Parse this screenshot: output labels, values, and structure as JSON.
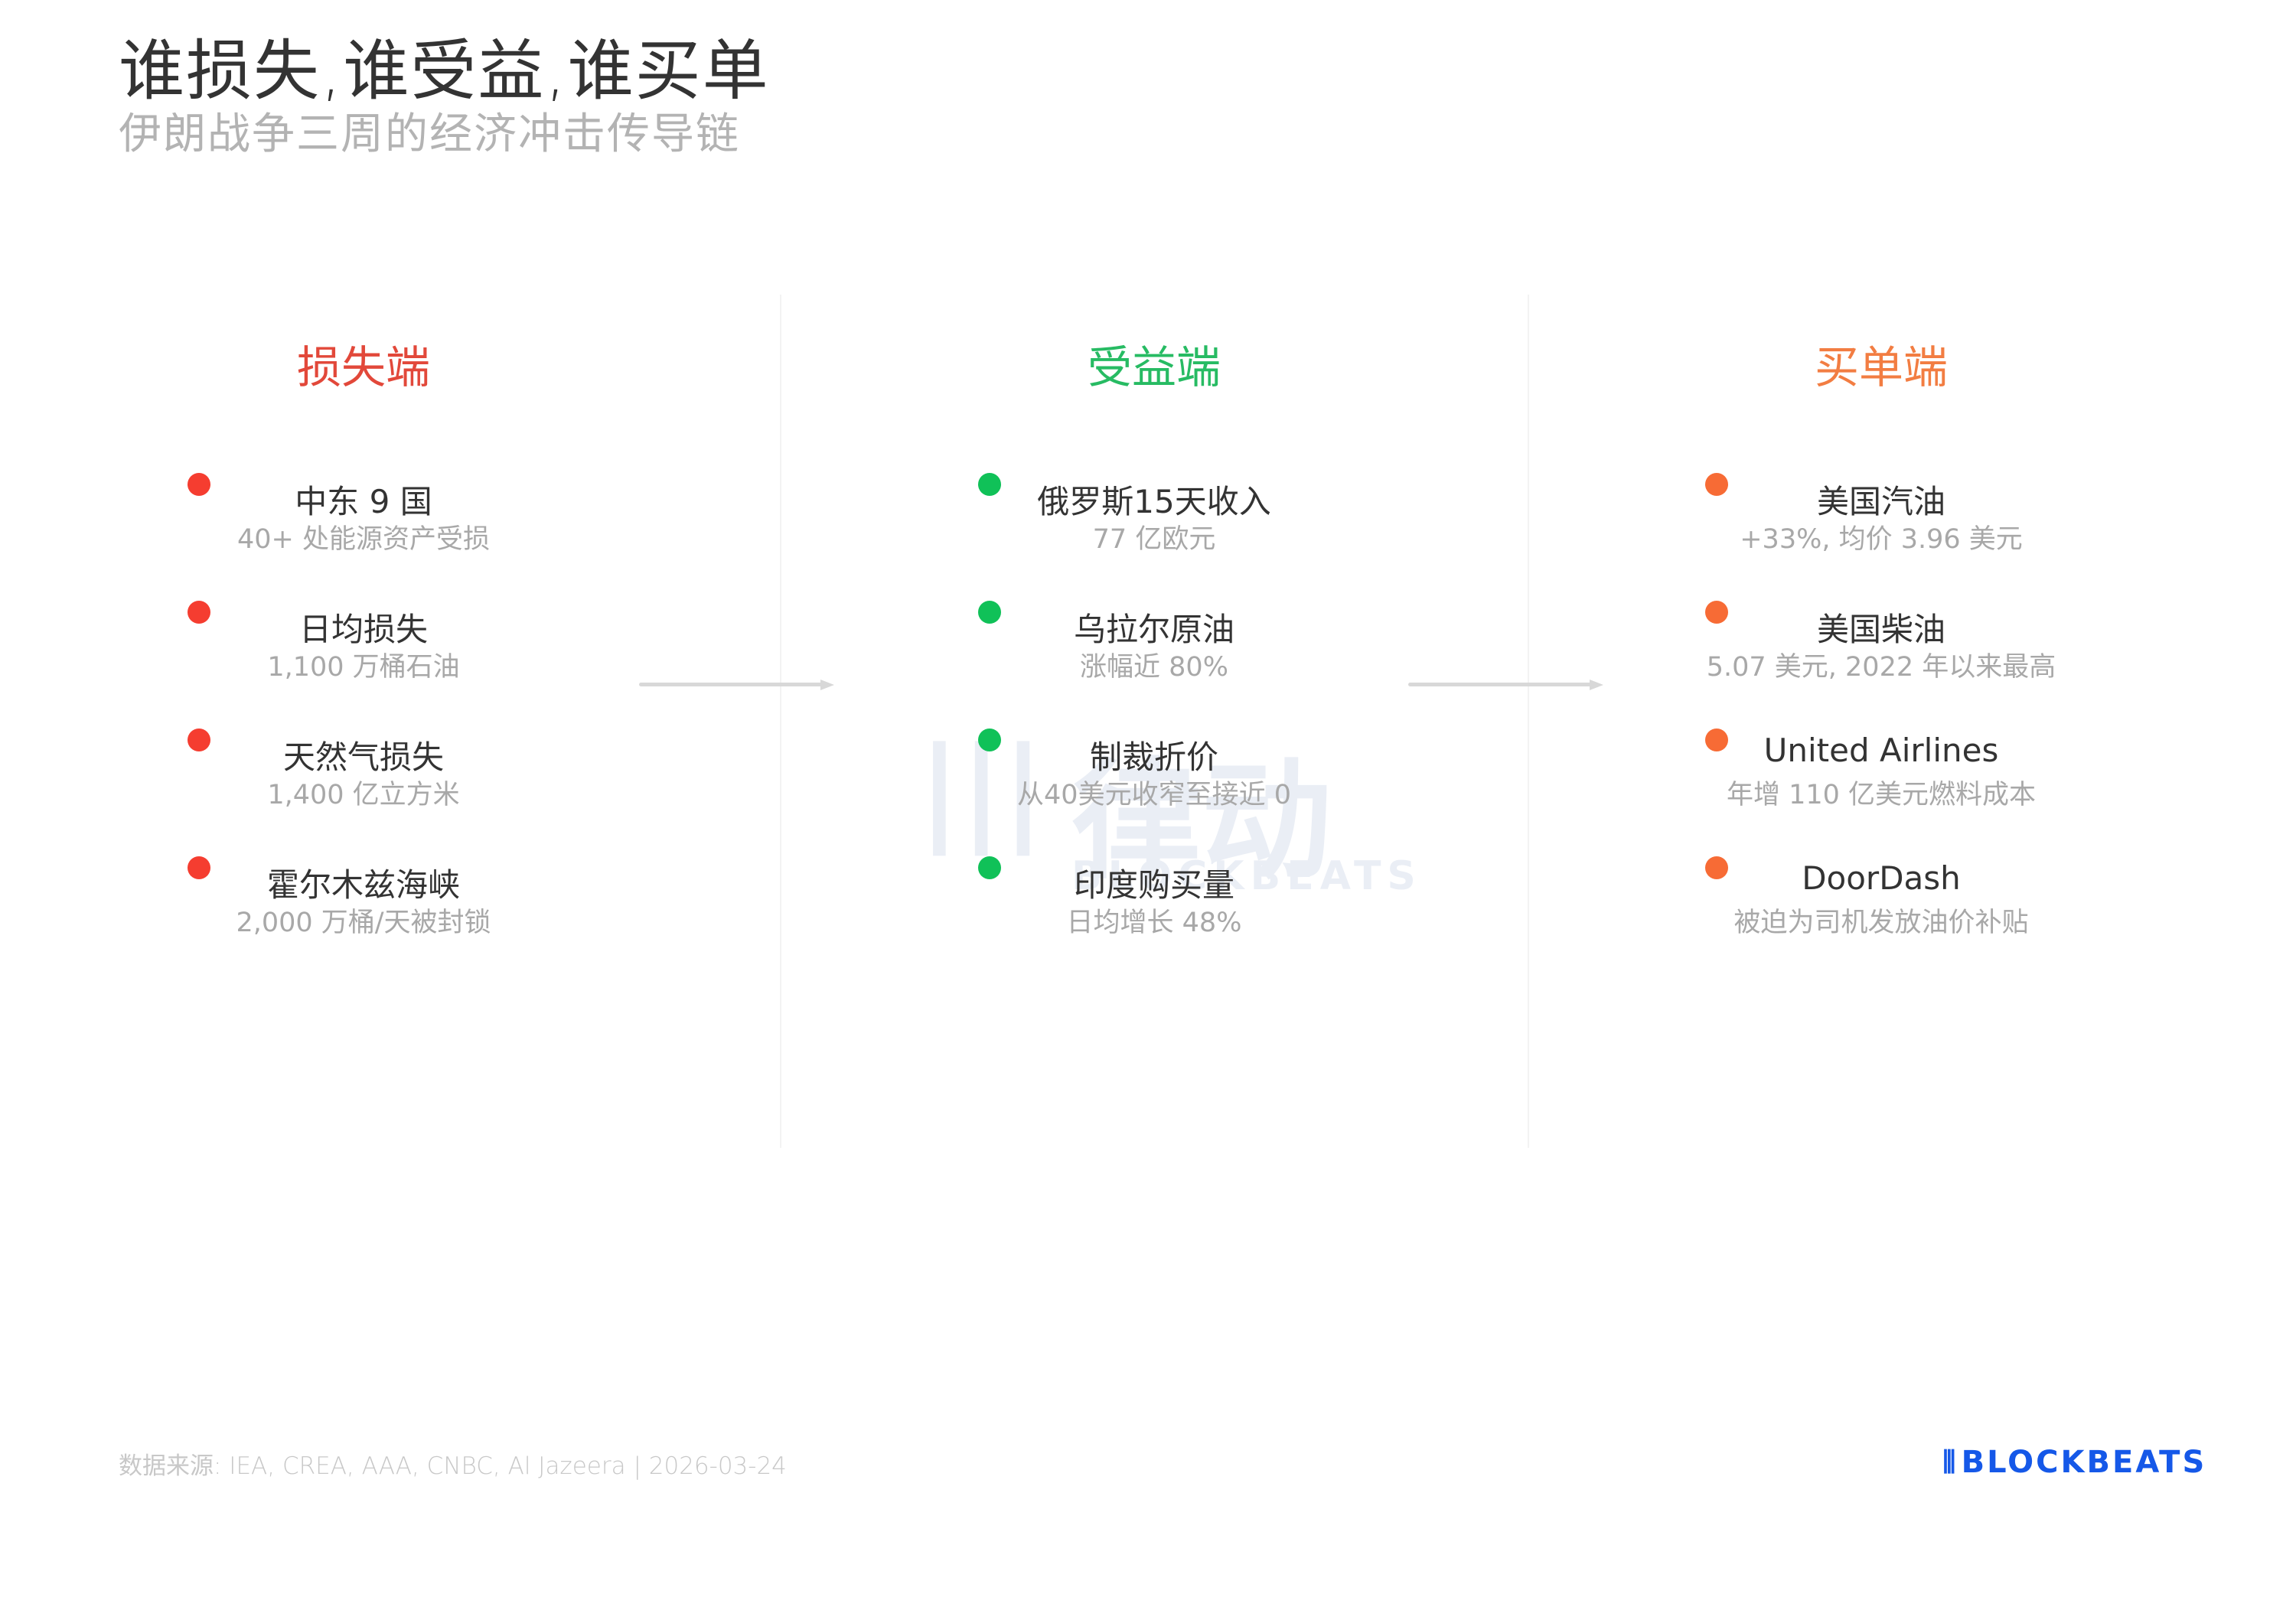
{
  "header": {
    "title": "谁损失,谁受益,谁买单",
    "subtitle": "伊朗战争三周的经济冲击传导链"
  },
  "columns": [
    {
      "heading": "损失端",
      "heading_color": "#e2483a",
      "dot_color": "#f53d30",
      "items": [
        {
          "title": "中东 9 国",
          "sub": "40+ 处能源资产受损"
        },
        {
          "title": "日均损失",
          "sub": "1,100 万桶石油"
        },
        {
          "title": "天然气损失",
          "sub": "1,400 亿立方米"
        },
        {
          "title": "霍尔木兹海峡",
          "sub": "2,000 万桶/天被封锁"
        }
      ]
    },
    {
      "heading": "受益端",
      "heading_color": "#27bb63",
      "dot_color": "#10c158",
      "items": [
        {
          "title": "俄罗斯15天收入",
          "sub": "77 亿欧元"
        },
        {
          "title": "乌拉尔原油",
          "sub": "涨幅近 80%"
        },
        {
          "title": "制裁折价",
          "sub": "从40美元收窄至接近 0"
        },
        {
          "title": "印度购买量",
          "sub": "日均增长 48%"
        }
      ]
    },
    {
      "heading": "买单端",
      "heading_color": "#f27d42",
      "dot_color": "#f76b35",
      "items": [
        {
          "title": "美国汽油",
          "sub": "+33%, 均价 3.96 美元"
        },
        {
          "title": "美国柴油",
          "sub": "5.07 美元, 2022 年以来最高"
        },
        {
          "title": "United Airlines",
          "sub": "年增 110 亿美元燃料成本"
        },
        {
          "title": "DoorDash",
          "sub": "被迫为司机发放油价补贴"
        }
      ]
    }
  ],
  "watermark": {
    "cn": "律动",
    "en": "BLOCKBEATS"
  },
  "footer": {
    "source": "数据来源: IEA, CREA, AAA, CNBC, Al Jazeera | 2026-03-24",
    "logo": "BLOCKBEATS",
    "logo_color": "#1558e8"
  }
}
